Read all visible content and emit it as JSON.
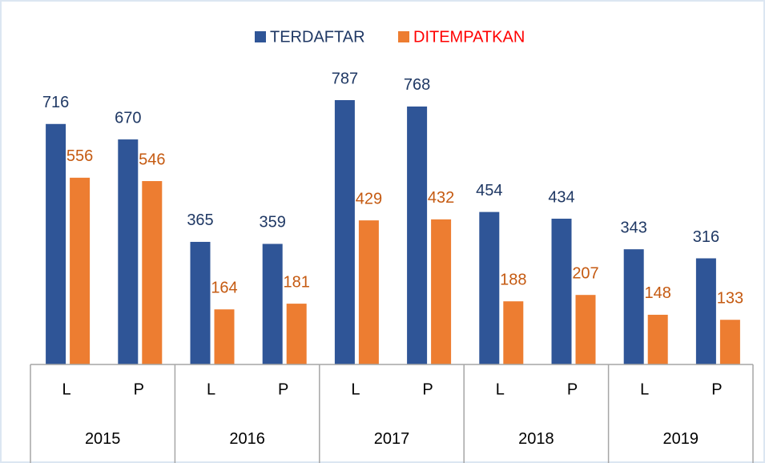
{
  "chart_data": {
    "type": "bar",
    "categories": [
      "L",
      "P",
      "L",
      "P",
      "L",
      "P",
      "L",
      "P",
      "L",
      "P"
    ],
    "groups": [
      "2015",
      "2016",
      "2017",
      "2018",
      "2019"
    ],
    "series": [
      {
        "name": "TERDAFTAR",
        "color": "#2f5597",
        "label_color": "#1f3864",
        "legend_text_color": "#1f3864",
        "values": [
          716,
          670,
          365,
          359,
          787,
          768,
          454,
          434,
          343,
          316
        ]
      },
      {
        "name": "DITEMPATKAN",
        "color": "#ed7d31",
        "label_color": "#c55a11",
        "legend_text_color": "#ff0000",
        "values": [
          556,
          546,
          164,
          181,
          429,
          432,
          188,
          207,
          148,
          133
        ]
      }
    ],
    "legend": "top"
  }
}
